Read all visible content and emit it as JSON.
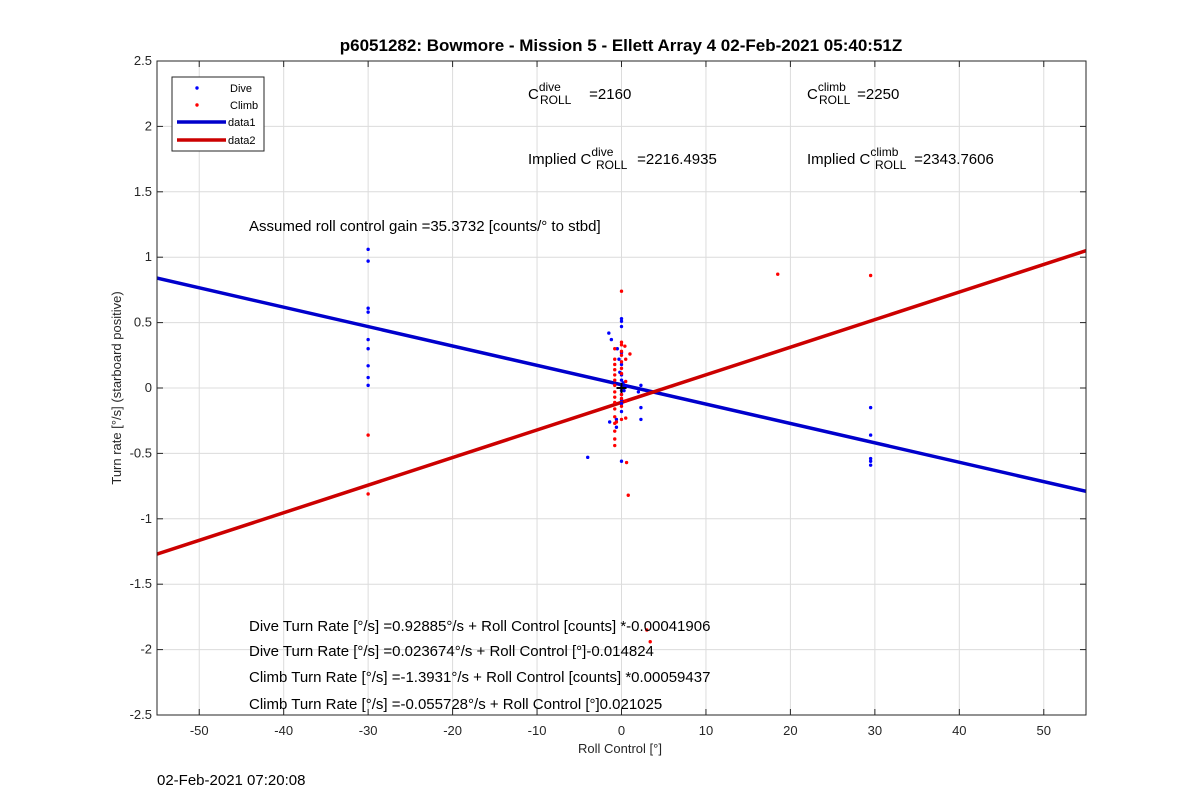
{
  "chart_data": {
    "type": "scatter",
    "title": "p6051282: Bowmore - Mission 5 - Ellett Array 4 02-Feb-2021 05:40:51Z",
    "xlabel": "Roll Control [°]",
    "ylabel": "Turn rate [°/s] (starboard positive)",
    "xlim": [
      -55,
      55
    ],
    "ylim": [
      -2.5,
      2.5
    ],
    "xticks": [
      -50,
      -40,
      -30,
      -20,
      -10,
      0,
      10,
      20,
      30,
      40,
      50
    ],
    "yticks": [
      -2.5,
      -2,
      -1.5,
      -1,
      -0.5,
      0,
      0.5,
      1,
      1.5,
      2,
      2.5
    ],
    "xtick_labels": [
      "-50",
      "-40",
      "-30",
      "-20",
      "-10",
      "0",
      "10",
      "20",
      "30",
      "40",
      "50"
    ],
    "ytick_labels": [
      "-2.5",
      "-2",
      "-1.5",
      "-1",
      "-0.5",
      "0",
      "0.5",
      "1",
      "1.5",
      "2",
      "2.5"
    ],
    "grid": true,
    "legend_placement": "top-left",
    "legend": [
      "Dive",
      "Climb",
      "data1",
      "data2"
    ],
    "colors": {
      "dive": "#0000ff",
      "climb": "#ff0000",
      "data1": "#0000cc",
      "data2": "#cc0000"
    },
    "series": [
      {
        "name": "Dive",
        "kind": "points",
        "points": [
          [
            -30,
            1.06
          ],
          [
            -30,
            0.97
          ],
          [
            -30,
            0.61
          ],
          [
            -30,
            0.58
          ],
          [
            -30,
            0.37
          ],
          [
            -30,
            0.3
          ],
          [
            -30,
            0.17
          ],
          [
            -30,
            0.08
          ],
          [
            -30,
            0.02
          ],
          [
            -4,
            -0.53
          ],
          [
            -1.5,
            0.42
          ],
          [
            -1.2,
            0.37
          ],
          [
            -1.4,
            -0.26
          ],
          [
            -0.5,
            0.3
          ],
          [
            -0.3,
            0.22
          ],
          [
            -0.2,
            0.12
          ],
          [
            0,
            0.53
          ],
          [
            0,
            0.51
          ],
          [
            0,
            0.47
          ],
          [
            0,
            0.27
          ],
          [
            0,
            0.18
          ],
          [
            0,
            0.1
          ],
          [
            0,
            0.06
          ],
          [
            0,
            0.02
          ],
          [
            0,
            -0.02
          ],
          [
            0,
            -0.05
          ],
          [
            0,
            -0.09
          ],
          [
            0,
            -0.12
          ],
          [
            0,
            -0.18
          ],
          [
            0.2,
            0.04
          ],
          [
            0.3,
            -0.02
          ],
          [
            0.5,
            0.01
          ],
          [
            0,
            -0.56
          ],
          [
            -0.6,
            -0.3
          ],
          [
            -0.6,
            -0.24
          ],
          [
            2,
            -0.03
          ],
          [
            2.3,
            0.02
          ],
          [
            2.3,
            -0.15
          ],
          [
            2.3,
            -0.24
          ],
          [
            29.5,
            -0.15
          ],
          [
            29.5,
            -0.36
          ],
          [
            29.5,
            -0.54
          ],
          [
            29.5,
            -0.56
          ],
          [
            29.5,
            -0.59
          ]
        ]
      },
      {
        "name": "Climb",
        "kind": "points",
        "points": [
          [
            -30,
            -0.36
          ],
          [
            -30,
            -0.81
          ],
          [
            -0.8,
            0.3
          ],
          [
            -0.8,
            0.22
          ],
          [
            -0.8,
            0.18
          ],
          [
            -0.8,
            0.14
          ],
          [
            -0.8,
            0.1
          ],
          [
            -0.8,
            0.06
          ],
          [
            -0.8,
            0.02
          ],
          [
            -0.8,
            -0.03
          ],
          [
            -0.8,
            -0.07
          ],
          [
            -0.8,
            -0.11
          ],
          [
            -0.8,
            -0.16
          ],
          [
            -0.8,
            -0.22
          ],
          [
            -0.8,
            -0.27
          ],
          [
            -0.8,
            -0.33
          ],
          [
            -0.8,
            -0.39
          ],
          [
            -0.8,
            -0.44
          ],
          [
            -0.6,
            -0.26
          ],
          [
            0,
            0.74
          ],
          [
            0,
            0.35
          ],
          [
            0,
            0.33
          ],
          [
            0,
            0.28
          ],
          [
            0,
            0.25
          ],
          [
            0,
            0.2
          ],
          [
            0,
            0.15
          ],
          [
            0,
            0.11
          ],
          [
            0,
            -0.05
          ],
          [
            0,
            -0.08
          ],
          [
            0,
            -0.14
          ],
          [
            0,
            -0.24
          ],
          [
            0.4,
            0.32
          ],
          [
            0.5,
            0.22
          ],
          [
            0.5,
            0.05
          ],
          [
            0.5,
            -0.1
          ],
          [
            0.5,
            -0.23
          ],
          [
            0.6,
            -0.57
          ],
          [
            0.8,
            -0.82
          ],
          [
            1,
            0.26
          ],
          [
            3.0,
            -1.85
          ],
          [
            3.4,
            -1.94
          ],
          [
            18.5,
            0.87
          ],
          [
            29.5,
            0.86
          ]
        ]
      },
      {
        "name": "data1",
        "kind": "line",
        "points": [
          [
            -55,
            0.84
          ],
          [
            55,
            -0.79
          ]
        ]
      },
      {
        "name": "data2",
        "kind": "line",
        "points": [
          [
            -55,
            -1.27
          ],
          [
            55,
            1.05
          ]
        ]
      }
    ],
    "annotations": {
      "c_dive": {
        "base": "C",
        "sup": "dive",
        "sub": "ROLL",
        "value": " =2160"
      },
      "c_climb": {
        "base": "C",
        "sup": "climb",
        "sub": "ROLL",
        "value": " =2250"
      },
      "implied_dive": {
        "prefix": "Implied C",
        "sup": "dive",
        "sub": "ROLL",
        "value": " =2216.4935"
      },
      "implied_climb": {
        "prefix": "Implied C",
        "sup": "climb",
        "sub": "ROLL",
        "value": " =2343.7606"
      },
      "gain": "Assumed roll control gain =35.3732 [counts/° to stbd]",
      "eq1": "Dive Turn Rate [°/s] =0.92885°/s + Roll Control [counts] *-0.00041906",
      "eq2": "Dive Turn Rate [°/s] =0.023674°/s + Roll Control [°]-0.014824",
      "eq3": "Climb Turn Rate [°/s] =-1.3931°/s + Roll Control [counts] *0.00059437",
      "eq4": "Climb Turn Rate [°/s] =-0.055728°/s + Roll Control [°]0.021025"
    },
    "center_marker": {
      "label": "+",
      "x": 0,
      "y": 0
    }
  },
  "footer": "02-Feb-2021 07:20:08"
}
